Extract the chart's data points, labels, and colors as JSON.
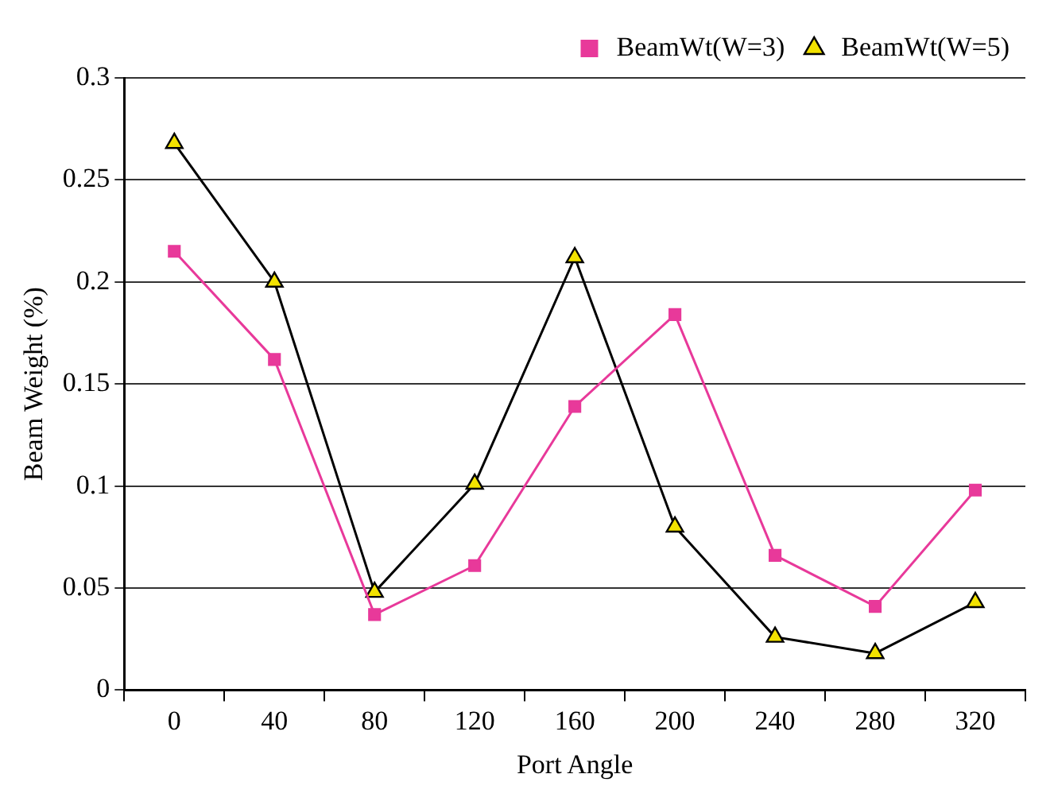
{
  "chart_data": {
    "type": "line",
    "xlabel": "Port Angle",
    "ylabel": "Beam Weight (%)",
    "categories": [
      "0",
      "40",
      "80",
      "120",
      "160",
      "200",
      "240",
      "280",
      "320"
    ],
    "series": [
      {
        "name": "BeamWt(W=3)",
        "color": "#e8399a",
        "marker": "square",
        "values": [
          0.215,
          0.162,
          0.037,
          0.061,
          0.139,
          0.184,
          0.066,
          0.041,
          0.098
        ]
      },
      {
        "name": "BeamWt(W=5)",
        "color": "#000000",
        "marker": "triangle",
        "values": [
          0.268,
          0.2,
          0.048,
          0.101,
          0.212,
          0.08,
          0.026,
          0.018,
          0.043
        ]
      }
    ],
    "ylim": [
      0,
      0.3
    ],
    "yticks": [
      0,
      0.05,
      0.1,
      0.15,
      0.2,
      0.25,
      0.3
    ],
    "grid": "y",
    "legend": "top right",
    "line_style": "solid"
  }
}
